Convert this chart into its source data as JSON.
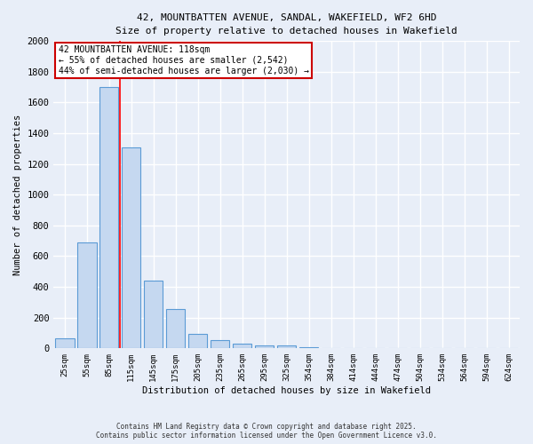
{
  "title_line1": "42, MOUNTBATTEN AVENUE, SANDAL, WAKEFIELD, WF2 6HD",
  "title_line2": "Size of property relative to detached houses in Wakefield",
  "xlabel": "Distribution of detached houses by size in Wakefield",
  "ylabel": "Number of detached properties",
  "categories": [
    "25sqm",
    "55sqm",
    "85sqm",
    "115sqm",
    "145sqm",
    "175sqm",
    "205sqm",
    "235sqm",
    "265sqm",
    "295sqm",
    "325sqm",
    "354sqm",
    "384sqm",
    "414sqm",
    "444sqm",
    "474sqm",
    "504sqm",
    "534sqm",
    "564sqm",
    "594sqm",
    "624sqm"
  ],
  "values": [
    65,
    690,
    1700,
    1310,
    440,
    255,
    95,
    55,
    30,
    20,
    18,
    5,
    3,
    2,
    1,
    1,
    0,
    0,
    0,
    0,
    0
  ],
  "bar_color": "#c5d8f0",
  "bar_edge_color": "#5b9bd5",
  "background_color": "#e8eef8",
  "grid_color": "#ffffff",
  "annotation_text": "42 MOUNTBATTEN AVENUE: 118sqm\n← 55% of detached houses are smaller (2,542)\n44% of semi-detached houses are larger (2,030) →",
  "annotation_box_color": "#ffffff",
  "annotation_box_edge": "#cc0000",
  "redline_x": 2.5,
  "ylim": [
    0,
    2000
  ],
  "yticks": [
    0,
    200,
    400,
    600,
    800,
    1000,
    1200,
    1400,
    1600,
    1800,
    2000
  ],
  "footer_line1": "Contains HM Land Registry data © Crown copyright and database right 2025.",
  "footer_line2": "Contains public sector information licensed under the Open Government Licence v3.0."
}
